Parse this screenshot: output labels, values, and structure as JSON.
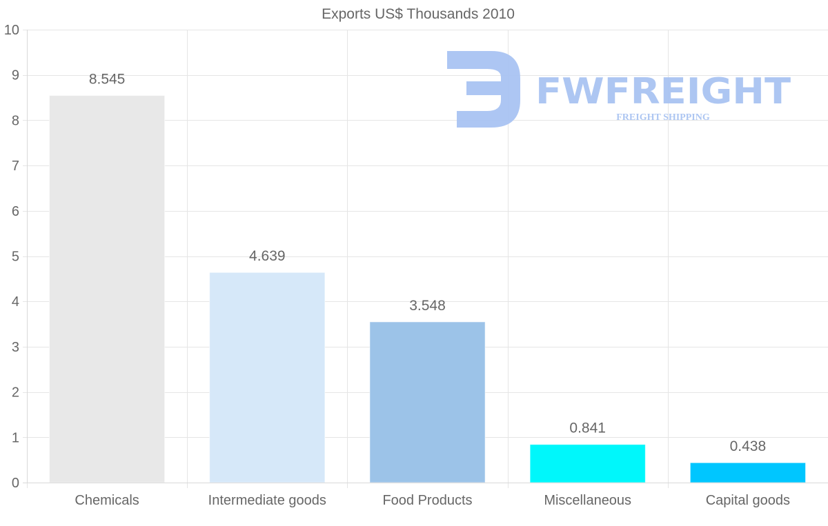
{
  "chart_data": {
    "type": "bar",
    "title": "Exports US$ Thousands 2010",
    "categories": [
      "Chemicals",
      "Intermediate goods",
      "Food Products",
      "Miscellaneous",
      "Capital goods"
    ],
    "values": [
      8.545,
      4.639,
      3.548,
      0.841,
      0.438
    ],
    "value_labels": [
      "8.545",
      "4.639",
      "3.548",
      "0.841",
      "0.438"
    ],
    "colors": [
      "#e8e8e8",
      "#d6e8f9",
      "#9cc3e8",
      "#00f7fb",
      "#00c6ff"
    ],
    "ylim": [
      0,
      10
    ],
    "yticks": [
      0,
      1,
      2,
      3,
      4,
      5,
      6,
      7,
      8,
      9,
      10
    ],
    "ytick_labels": [
      "0",
      "1",
      "2",
      "3",
      "4",
      "5",
      "6",
      "7",
      "8",
      "9",
      "10"
    ],
    "xlabel": "",
    "ylabel": "",
    "grid": true,
    "legend": "none"
  },
  "watermark": {
    "brand": "FWFREIGHT",
    "tagline": "FREIGHT SHIPPING",
    "color": "#a9c3f2"
  }
}
